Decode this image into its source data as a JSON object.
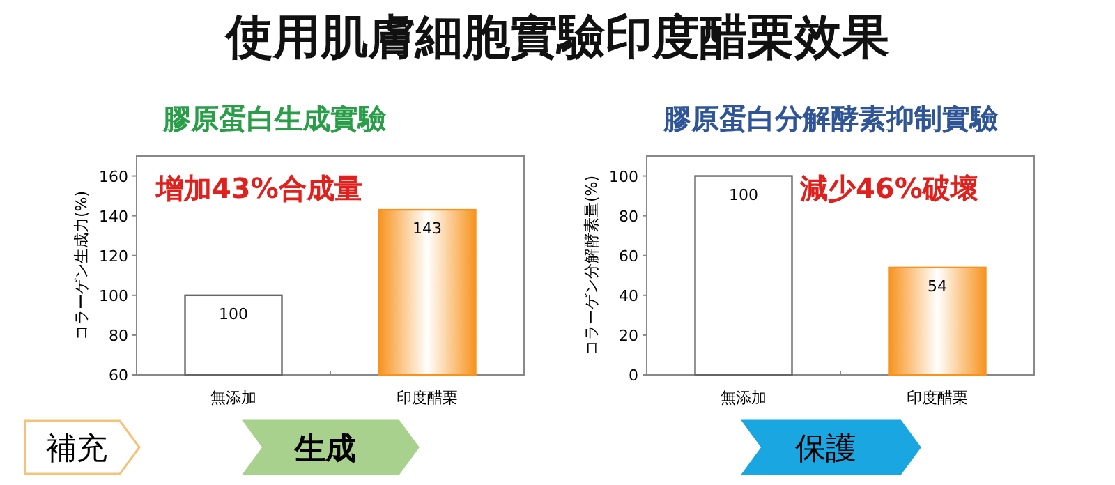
{
  "chart_data": [
    {
      "type": "other",
      "title": "使用肌膚細胞實驗印度醋栗效果"
    },
    {
      "type": "bar",
      "title": "膠原蛋白生成實驗",
      "ylabel": "コラーゲン生成力(%)",
      "categories": [
        "無添加",
        "印度醋栗"
      ],
      "values": [
        100,
        143
      ],
      "colors": [
        "#ffffff",
        "#f7931e"
      ],
      "ylim": [
        60,
        170
      ],
      "yticks": [
        60,
        80,
        100,
        120,
        140,
        160
      ],
      "data_labels": true,
      "annotations": [
        "增加43%合成量",
        "補充",
        "生成"
      ]
    },
    {
      "type": "bar",
      "title": "膠原蛋白分解酵素抑制實驗",
      "ylabel": "コラーゲン分解酵素量(%)",
      "categories": [
        "無添加",
        "印度醋栗"
      ],
      "values": [
        100,
        54
      ],
      "colors": [
        "#ffffff",
        "#f7931e"
      ],
      "ylim": [
        0,
        110
      ],
      "yticks": [
        0,
        20,
        40,
        60,
        80,
        100
      ],
      "data_labels": true,
      "annotations": [
        "減少46%破壞",
        "保護"
      ]
    }
  ]
}
